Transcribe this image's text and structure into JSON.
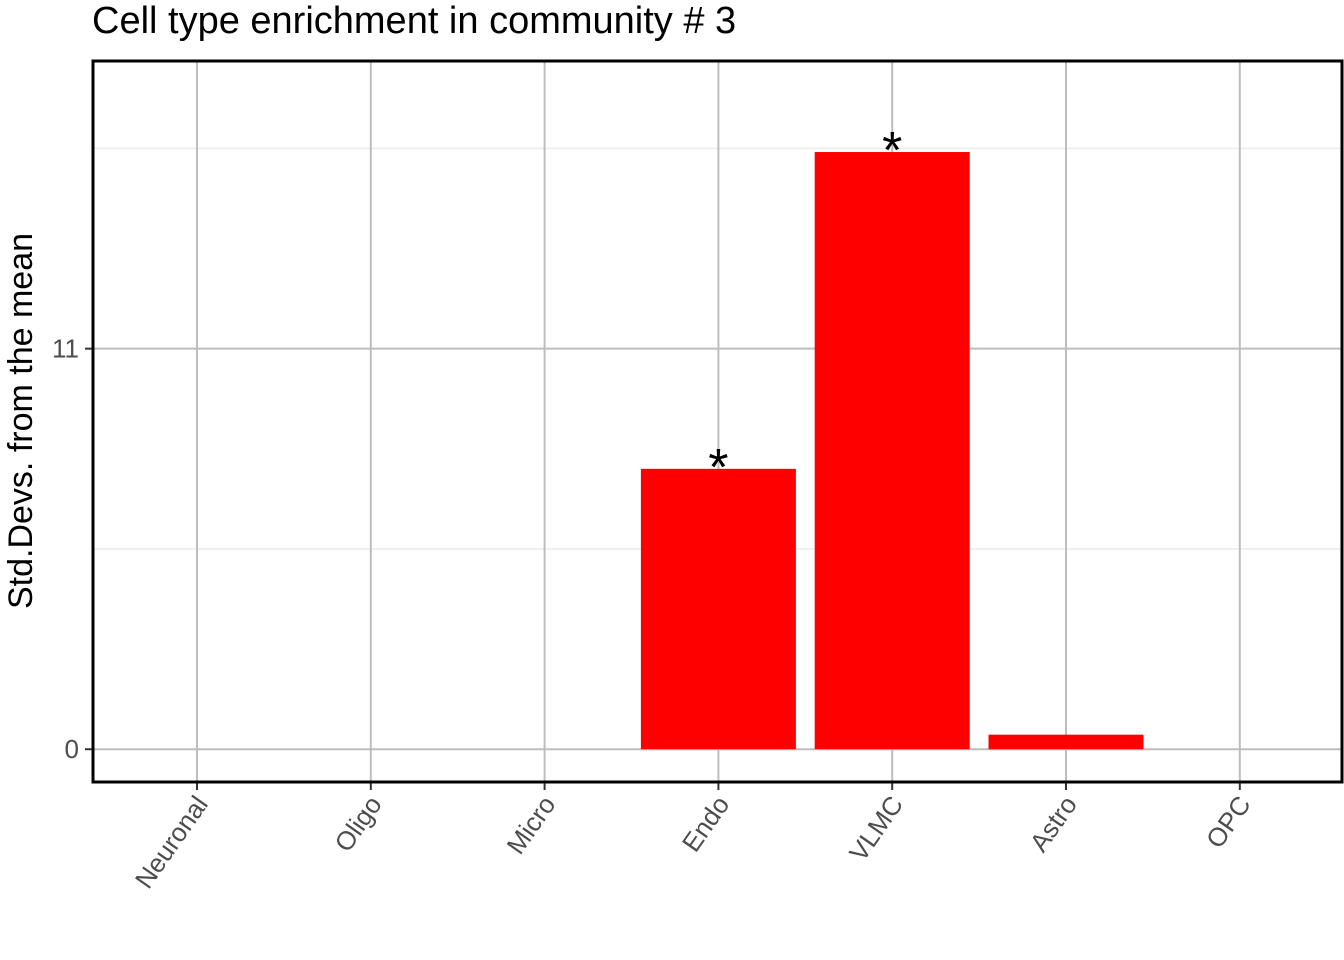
{
  "chart_data": {
    "type": "bar",
    "title": "Cell type enrichment in community # 3",
    "xlabel": "",
    "ylabel": "Std.Devs. from the mean",
    "categories": [
      "Neuronal",
      "Oligo",
      "Micro",
      "Endo",
      "VLMC",
      "Astro",
      "OPC"
    ],
    "values": [
      0,
      0,
      0,
      7.7,
      16.4,
      0.4,
      0
    ],
    "significance": [
      "",
      "",
      "",
      "*",
      "*",
      "",
      ""
    ],
    "y_ticks": [
      0,
      11
    ],
    "ylim": [
      -0.9,
      18.9
    ],
    "bar_color": "#ff0000",
    "grid": true,
    "legend": "none"
  }
}
